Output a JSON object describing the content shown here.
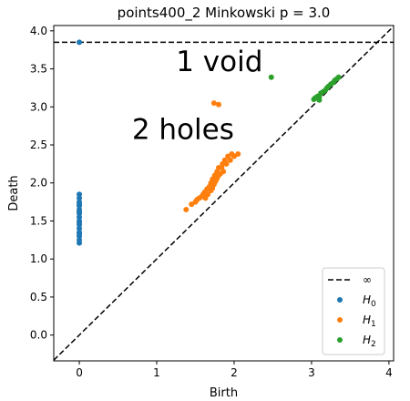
{
  "chart_data": {
    "type": "scatter",
    "title": "points400_2 Minkowski p = 3.0",
    "xlabel": "Birth",
    "ylabel": "Death",
    "xlim": [
      -0.33,
      4.06
    ],
    "ylim": [
      -0.34,
      4.07
    ],
    "xticks": [
      0,
      1,
      2,
      3,
      4
    ],
    "yticks": [
      0.0,
      0.5,
      1.0,
      1.5,
      2.0,
      2.5,
      3.0,
      3.5,
      4.0
    ],
    "xtick_labels": [
      "0",
      "1",
      "2",
      "3",
      "4"
    ],
    "ytick_labels": [
      "0.0",
      "0.5",
      "1.0",
      "1.5",
      "2.0",
      "2.5",
      "3.0",
      "3.5",
      "4.0"
    ],
    "infinity_line": {
      "y": 3.85,
      "label": "∞",
      "style": "dashed",
      "color": "#000000"
    },
    "diagonal": {
      "style": "dashed",
      "color": "#000000"
    },
    "legend_position": "lower-right",
    "grid": false,
    "series": [
      {
        "name": "H",
        "subscript": "0",
        "color": "#1f77b4",
        "points": [
          [
            0.0,
            3.85
          ],
          [
            0.0,
            1.21
          ],
          [
            0.0,
            1.25
          ],
          [
            0.0,
            1.3
          ],
          [
            0.0,
            1.35
          ],
          [
            0.0,
            1.4
          ],
          [
            0.0,
            1.45
          ],
          [
            0.0,
            1.5
          ],
          [
            0.0,
            1.55
          ],
          [
            0.0,
            1.6
          ],
          [
            0.0,
            1.65
          ],
          [
            0.0,
            1.7
          ],
          [
            0.0,
            1.75
          ],
          [
            0.0,
            1.8
          ],
          [
            0.0,
            1.85
          ],
          [
            0.0,
            1.33
          ],
          [
            0.0,
            1.48
          ],
          [
            0.0,
            1.62
          ],
          [
            0.0,
            1.72
          ]
        ]
      },
      {
        "name": "H",
        "subscript": "1",
        "color": "#ff7f0e",
        "points": [
          [
            1.38,
            1.65
          ],
          [
            1.45,
            1.72
          ],
          [
            1.5,
            1.75
          ],
          [
            1.52,
            1.78
          ],
          [
            1.55,
            1.8
          ],
          [
            1.58,
            1.82
          ],
          [
            1.6,
            1.85
          ],
          [
            1.62,
            1.88
          ],
          [
            1.63,
            1.8
          ],
          [
            1.65,
            1.92
          ],
          [
            1.66,
            1.85
          ],
          [
            1.68,
            1.95
          ],
          [
            1.7,
            1.9
          ],
          [
            1.7,
            2.0
          ],
          [
            1.72,
            1.93
          ],
          [
            1.72,
            2.05
          ],
          [
            1.74,
            1.98
          ],
          [
            1.75,
            2.1
          ],
          [
            1.76,
            2.02
          ],
          [
            1.78,
            2.15
          ],
          [
            1.78,
            2.06
          ],
          [
            1.8,
            2.1
          ],
          [
            1.8,
            2.2
          ],
          [
            1.82,
            2.12
          ],
          [
            1.84,
            2.2
          ],
          [
            1.85,
            2.25
          ],
          [
            1.86,
            2.15
          ],
          [
            1.88,
            2.3
          ],
          [
            1.9,
            2.25
          ],
          [
            1.92,
            2.35
          ],
          [
            1.95,
            2.3
          ],
          [
            1.97,
            2.38
          ],
          [
            2.0,
            2.35
          ],
          [
            2.05,
            2.38
          ],
          [
            1.74,
            3.05
          ],
          [
            1.8,
            3.03
          ]
        ]
      },
      {
        "name": "H",
        "subscript": "2",
        "color": "#2ca02c",
        "points": [
          [
            2.48,
            3.39
          ],
          [
            3.03,
            3.1
          ],
          [
            3.05,
            3.12
          ],
          [
            3.08,
            3.14
          ],
          [
            3.1,
            3.13
          ],
          [
            3.12,
            3.18
          ],
          [
            3.15,
            3.2
          ],
          [
            3.18,
            3.22
          ],
          [
            3.2,
            3.25
          ],
          [
            3.22,
            3.27
          ],
          [
            3.25,
            3.3
          ],
          [
            3.28,
            3.32
          ],
          [
            3.3,
            3.35
          ],
          [
            3.33,
            3.37
          ],
          [
            3.35,
            3.39
          ],
          [
            3.1,
            3.09
          ]
        ]
      }
    ],
    "annotations": [
      {
        "text": "1 void",
        "x": 1.25,
        "y": 3.47
      },
      {
        "text": "2 holes",
        "x": 0.68,
        "y": 2.58
      }
    ]
  }
}
